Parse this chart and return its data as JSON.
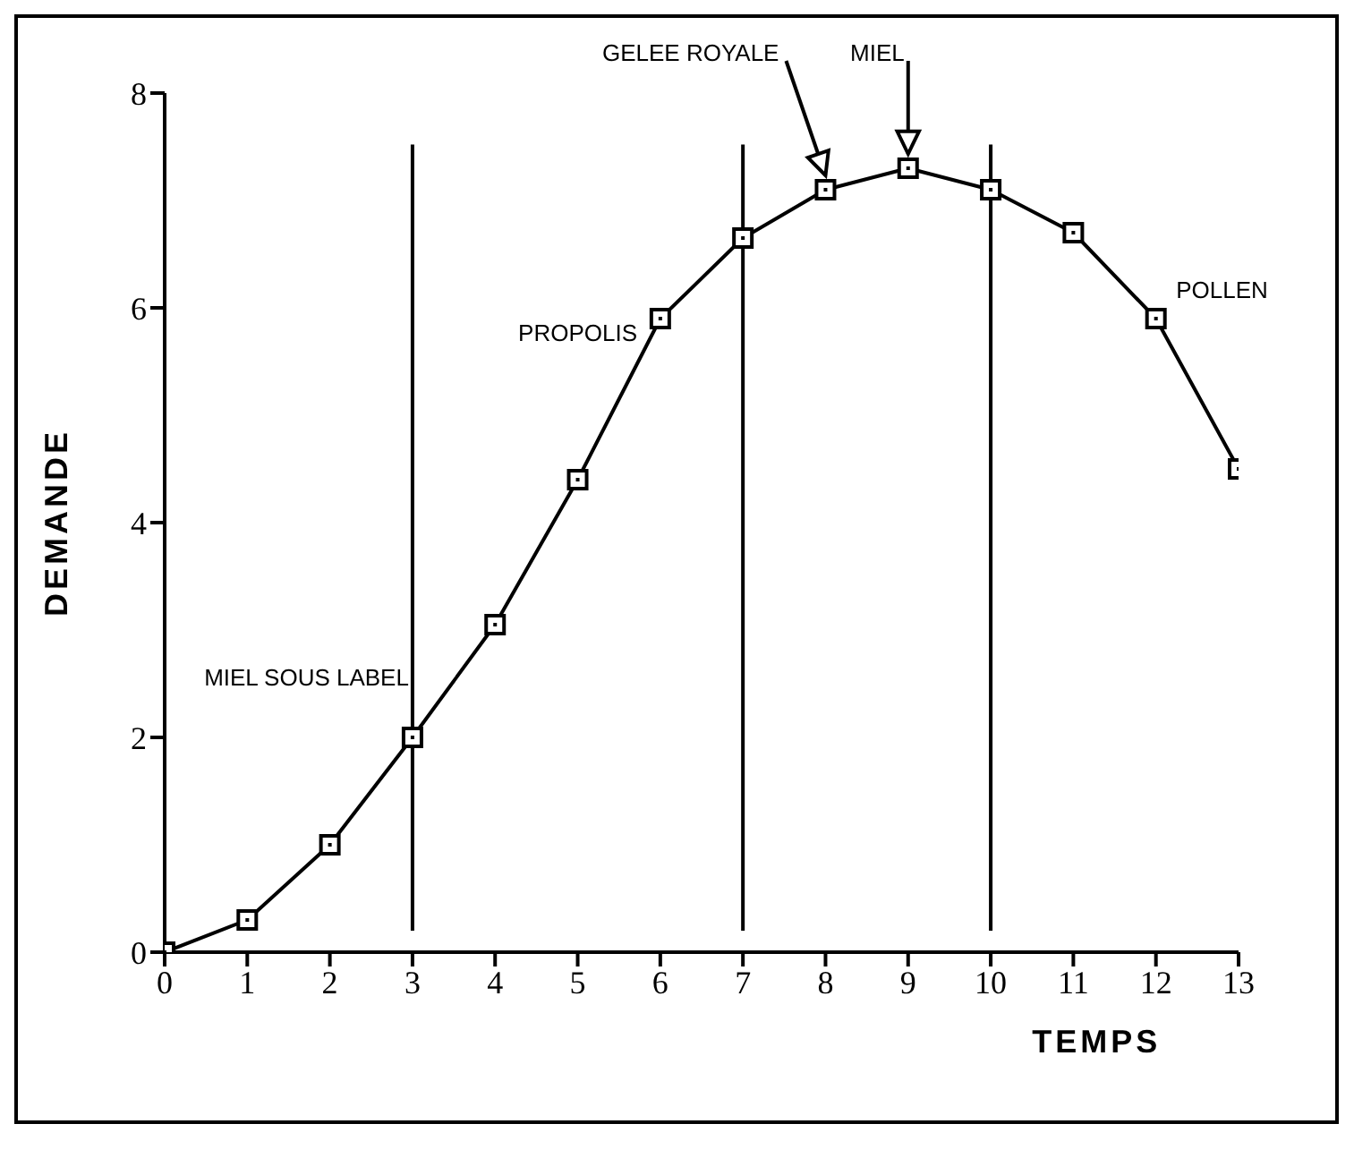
{
  "chart_data": {
    "type": "line",
    "xlabel": "TEMPS",
    "ylabel": "DEMANDE",
    "x": [
      0,
      1,
      2,
      3,
      4,
      5,
      6,
      7,
      8,
      9,
      10,
      11,
      12,
      13
    ],
    "series": [
      {
        "color": "#000000",
        "values": [
          0,
          0.3,
          1,
          2,
          3.05,
          4.4,
          5.9,
          6.65,
          7.1,
          7.3,
          7.1,
          6.7,
          5.9,
          4.5
        ]
      }
    ],
    "xlim": [
      0,
      13
    ],
    "xticks": [
      0,
      1,
      2,
      3,
      4,
      5,
      6,
      7,
      8,
      9,
      10,
      11,
      12,
      13
    ],
    "ylim": [
      0,
      8
    ],
    "yticks": [
      0,
      2,
      4,
      6,
      8
    ],
    "ref_lines": [
      {
        "axis": "x",
        "value": 3,
        "label": "MIEL SOUS LABEL"
      },
      {
        "axis": "x",
        "value": 7
      },
      {
        "axis": "x",
        "value": 10
      }
    ],
    "annotations": [
      "PROPOLIS",
      {
        "text": "GELEE ROYALE",
        "x": 8,
        "y": 7.1
      },
      {
        "text": "MIEL",
        "x": 9,
        "y": 7.3
      },
      "POLLEN"
    ],
    "grid": false,
    "legend": false,
    "marker": "square",
    "line_style": "solid"
  }
}
